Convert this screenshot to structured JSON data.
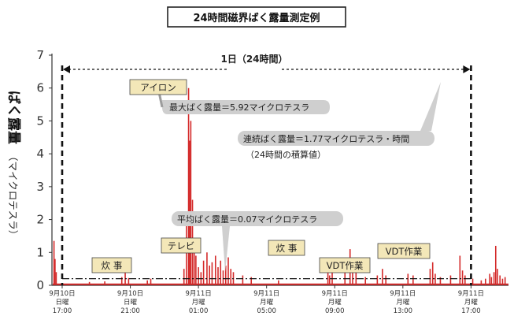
{
  "chart_data": {
    "type": "line",
    "title": "24時間磁界ばく露量測定例",
    "ylabel_main": "ばく露量",
    "ylabel_unit": "（マイクロテスラ）",
    "ylim": [
      0,
      7
    ],
    "y_ticks": [
      "0",
      "1",
      "2",
      "3",
      "4",
      "5",
      "6",
      "7"
    ],
    "x_ticks": [
      {
        "date": "9月10日",
        "day": "日曜",
        "time": "17:00"
      },
      {
        "date": "9月10日",
        "day": "日曜",
        "time": "21:00"
      },
      {
        "date": "9月11日",
        "day": "月曜",
        "time": "01:00"
      },
      {
        "date": "9月11日",
        "day": "月曜",
        "time": "05:00"
      },
      {
        "date": "9月11日",
        "day": "月曜",
        "time": "09:00"
      },
      {
        "date": "9月11日",
        "day": "月曜",
        "time": "13:00"
      },
      {
        "date": "9月11日",
        "day": "月曜",
        "time": "17:00"
      }
    ],
    "x_hours_range": [
      -0.6,
      26.2
    ],
    "series_color": "#d42a2a",
    "span_label": "1日（24時間）",
    "span_hours": [
      0,
      24
    ],
    "average_value": 0.07,
    "baseline_level": 0.2,
    "annotations": {
      "max_label": "最大ばく露量＝5.92マイクロテスラ",
      "cumulative_label": "連続ばく露量＝1.77マイクロテスラ・時間",
      "cumulative_note": "（24時間の積算値）",
      "average_label": "平均ばく露量＝0.07マイクロテスラ"
    },
    "event_labels": [
      "アイロン",
      "炊 事",
      "テレビ",
      "炊 事",
      "VDT作業",
      "VDT作業"
    ],
    "spikes": [
      [
        -0.48,
        1.35
      ],
      [
        -0.42,
        0.8
      ],
      [
        -0.35,
        0.4
      ],
      [
        1.6,
        0.1
      ],
      [
        2.5,
        0.12
      ],
      [
        3.5,
        0.25
      ],
      [
        3.7,
        0.38
      ],
      [
        3.9,
        0.22
      ],
      [
        5.0,
        0.15
      ],
      [
        5.2,
        0.2
      ],
      [
        7.15,
        0.5
      ],
      [
        7.3,
        2.15
      ],
      [
        7.42,
        6.0
      ],
      [
        7.48,
        4.4
      ],
      [
        7.55,
        5.0
      ],
      [
        7.65,
        2.6
      ],
      [
        7.75,
        1.4
      ],
      [
        7.85,
        0.9
      ],
      [
        8.0,
        0.55
      ],
      [
        8.15,
        0.4
      ],
      [
        8.3,
        0.75
      ],
      [
        8.5,
        1.0
      ],
      [
        8.65,
        0.6
      ],
      [
        8.8,
        0.7
      ],
      [
        9.0,
        0.9
      ],
      [
        9.15,
        0.55
      ],
      [
        9.3,
        0.75
      ],
      [
        9.45,
        0.45
      ],
      [
        9.6,
        0.6
      ],
      [
        9.75,
        0.85
      ],
      [
        9.9,
        0.5
      ],
      [
        10.05,
        0.4
      ],
      [
        10.6,
        0.3
      ],
      [
        11.1,
        0.25
      ],
      [
        12.7,
        0.15
      ],
      [
        15.6,
        0.65
      ],
      [
        15.7,
        0.3
      ],
      [
        15.85,
        0.5
      ],
      [
        16.6,
        0.7
      ],
      [
        16.9,
        1.1
      ],
      [
        17.05,
        0.6
      ],
      [
        17.25,
        0.45
      ],
      [
        17.8,
        0.25
      ],
      [
        18.5,
        0.3
      ],
      [
        18.8,
        0.5
      ],
      [
        19.0,
        0.3
      ],
      [
        20.3,
        0.35
      ],
      [
        20.6,
        0.3
      ],
      [
        21.6,
        0.5
      ],
      [
        21.75,
        0.7
      ],
      [
        21.9,
        0.35
      ],
      [
        22.2,
        0.25
      ],
      [
        22.8,
        0.3
      ],
      [
        23.35,
        0.9
      ],
      [
        23.5,
        0.45
      ],
      [
        23.65,
        0.3
      ],
      [
        24.1,
        0.2
      ],
      [
        24.6,
        0.15
      ],
      [
        24.85,
        0.2
      ],
      [
        25.1,
        0.35
      ],
      [
        25.2,
        0.25
      ],
      [
        25.35,
        0.4
      ],
      [
        25.45,
        1.2
      ],
      [
        25.55,
        0.5
      ],
      [
        25.7,
        0.3
      ],
      [
        25.85,
        0.2
      ],
      [
        26.0,
        0.25
      ]
    ]
  }
}
